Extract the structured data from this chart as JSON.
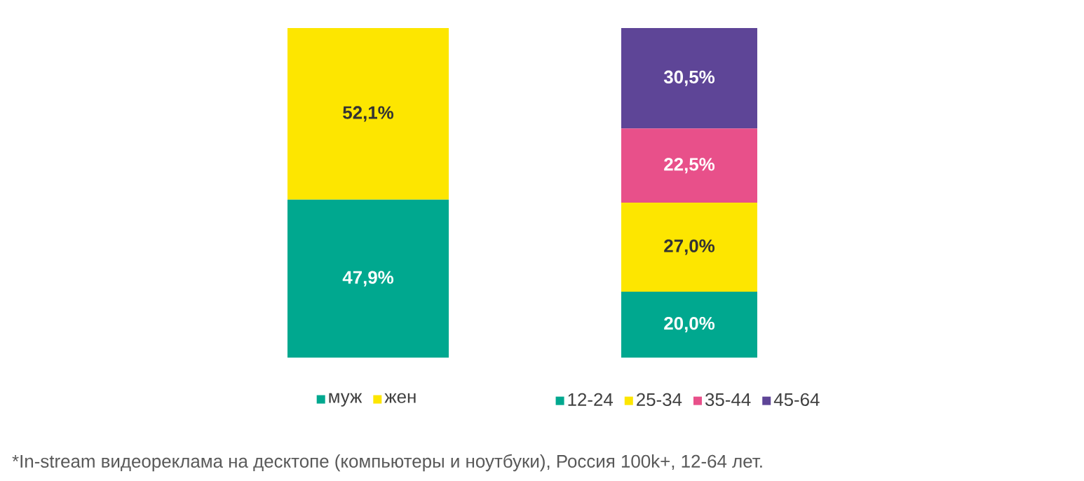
{
  "chart_data": [
    {
      "type": "bar",
      "stacked": true,
      "categories": [
        null
      ],
      "legend": "bottom",
      "series": [
        {
          "name": "муж",
          "color": "#00a88f",
          "values": [
            47.9
          ],
          "value_labels": [
            "47,9%"
          ]
        },
        {
          "name": "жен",
          "color": "#fde600",
          "values": [
            52.1
          ],
          "value_labels": [
            "52,1%"
          ]
        }
      ]
    },
    {
      "type": "bar",
      "stacked": true,
      "categories": [
        null
      ],
      "legend": "bottom",
      "series": [
        {
          "name": "12-24",
          "color": "#00a88f",
          "values": [
            20.0
          ],
          "value_labels": [
            "20,0%"
          ]
        },
        {
          "name": "25-34",
          "color": "#fde600",
          "values": [
            27.0
          ],
          "value_labels": [
            "27,0%"
          ]
        },
        {
          "name": "35-44",
          "color": "#e8508a",
          "values": [
            22.5
          ],
          "value_labels": [
            "22,5%"
          ]
        },
        {
          "name": "45-64",
          "color": "#5e4597",
          "values": [
            30.5
          ],
          "value_labels": [
            "30,5%"
          ]
        }
      ],
      "annotations": [
        "*In-stream видеореклама на десктопе (компьютеры и ноутбуки), Россия 100k+, 12-64 лет."
      ]
    }
  ]
}
